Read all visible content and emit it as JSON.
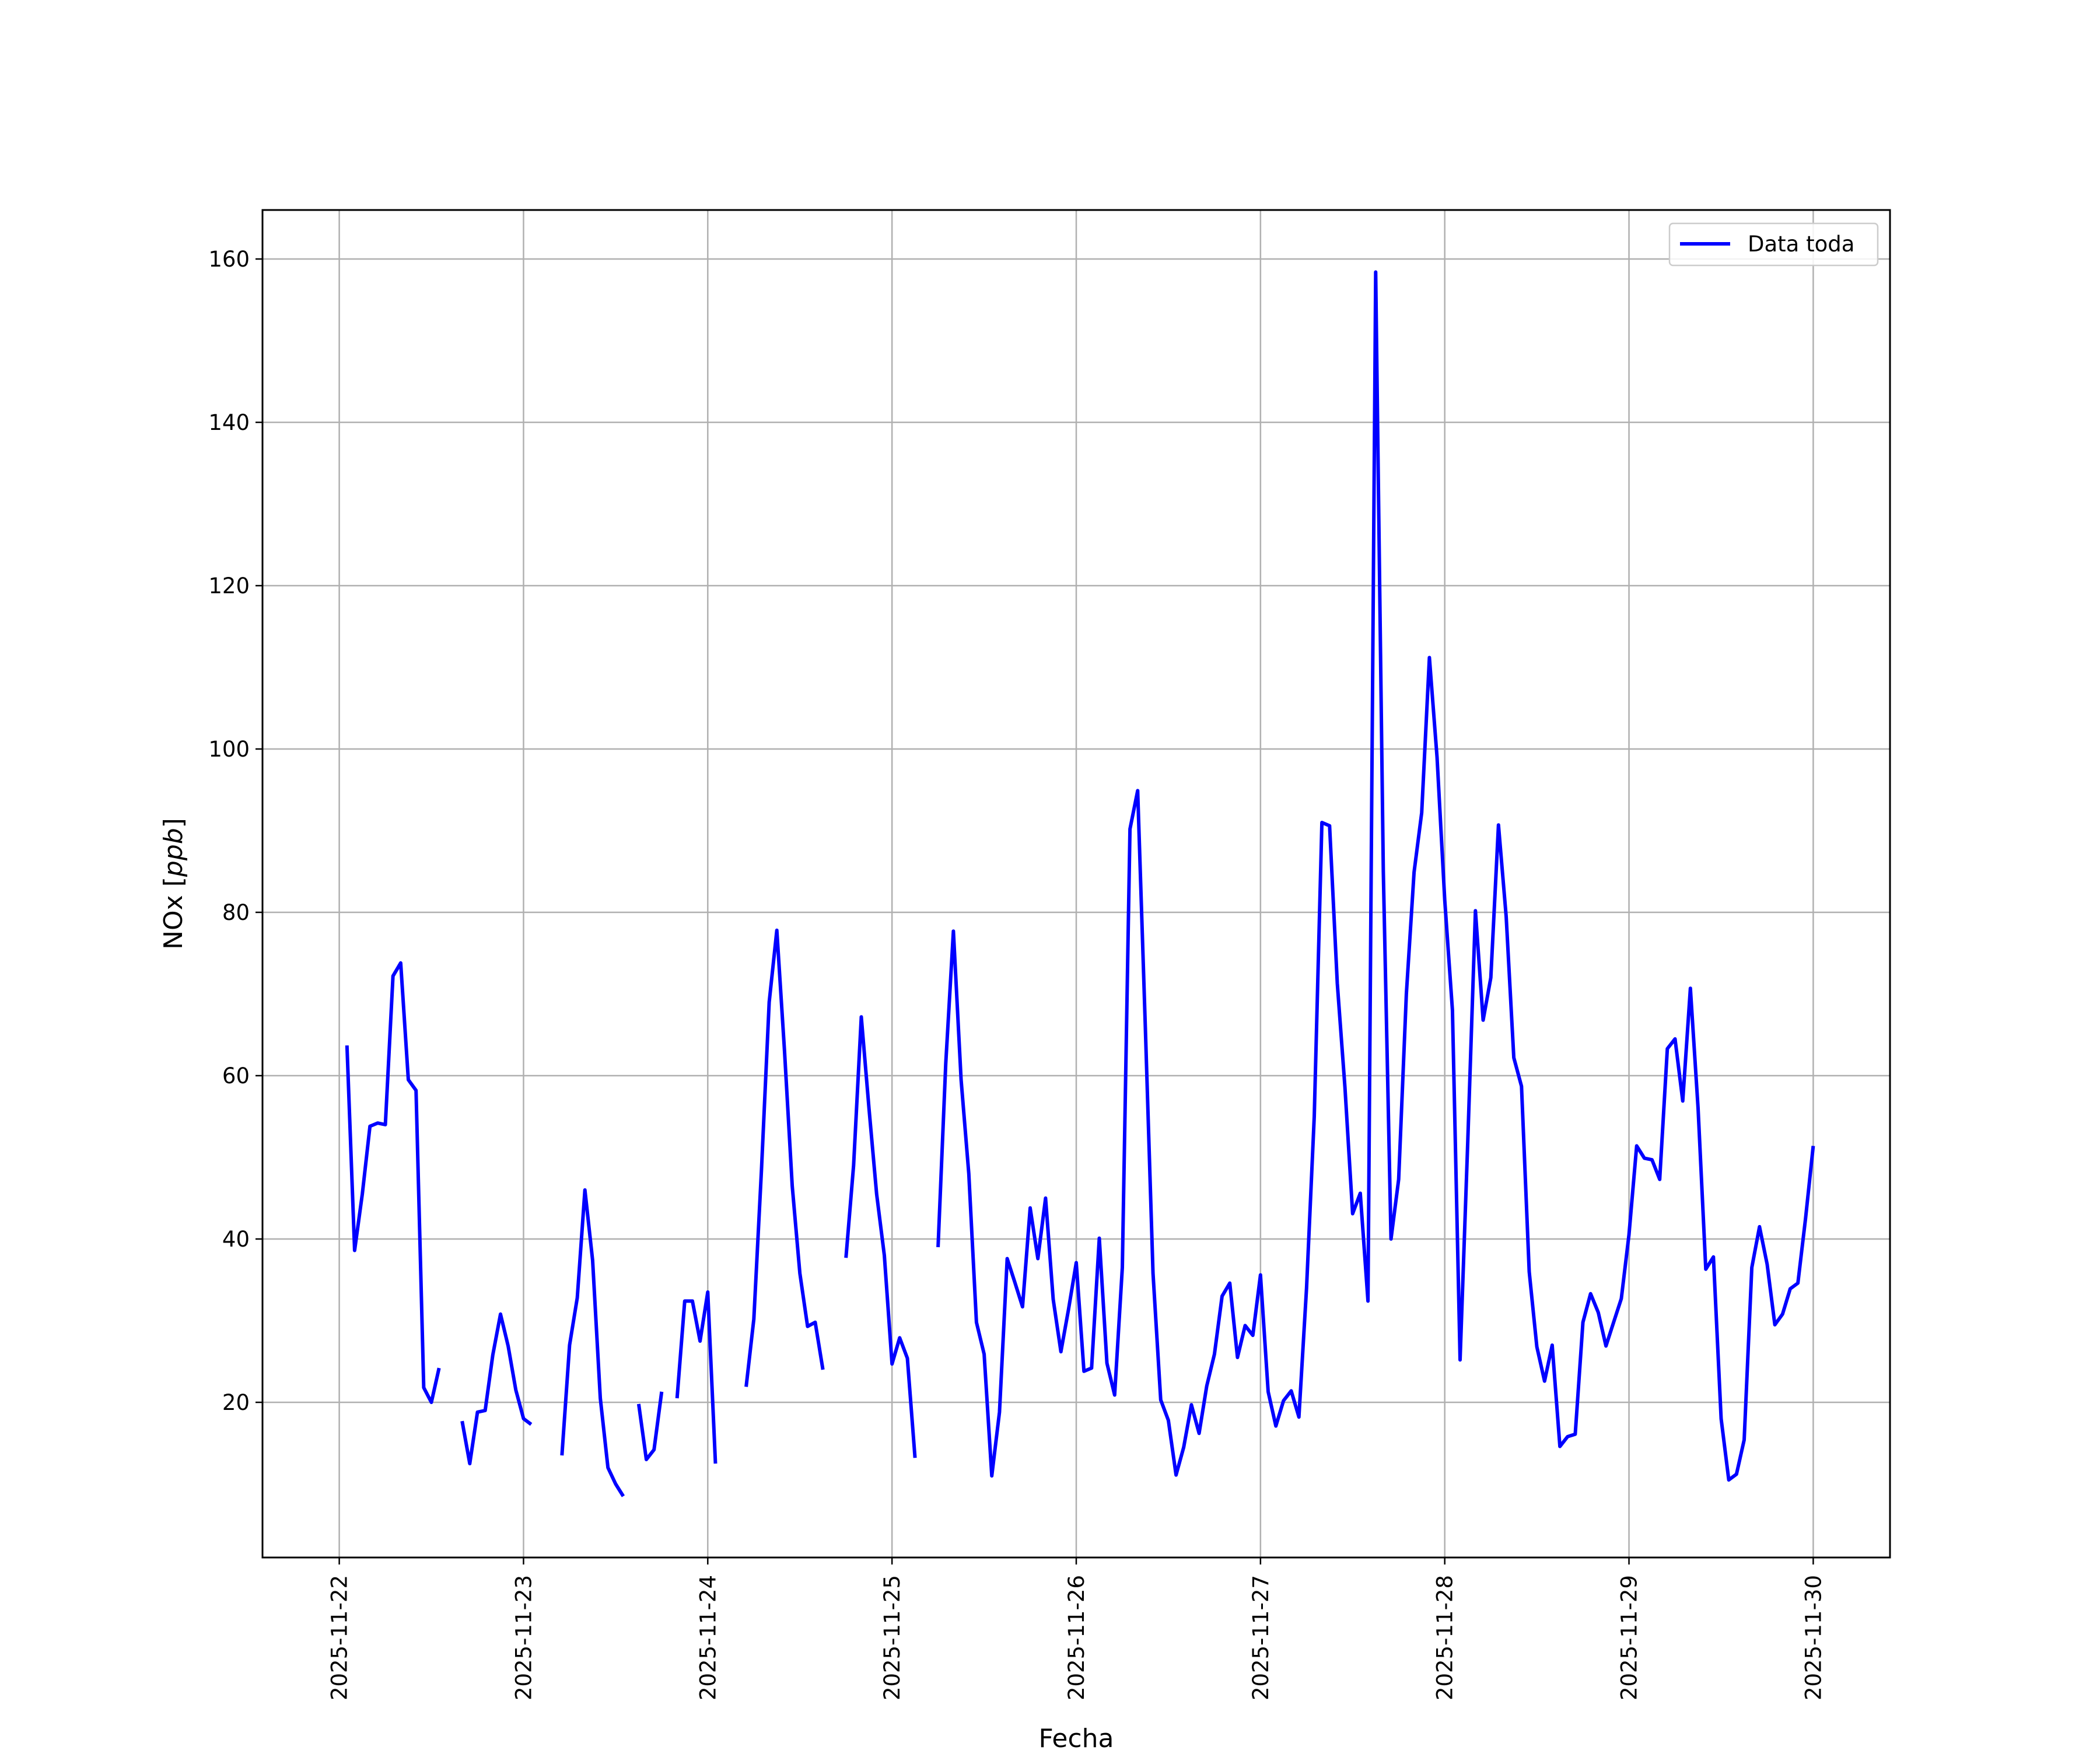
{
  "chart_data": {
    "type": "line",
    "title": "",
    "xlabel": "Fecha",
    "ylabel": "NOx [ppb]",
    "ylabel_parts": {
      "prefix": "NOx [",
      "unit": "ppb",
      "suffix": "]"
    },
    "xlim": [
      "2025-11-21T14:00",
      "2025-11-30T10:00"
    ],
    "ylim": [
      1,
      166
    ],
    "y_ticks": [
      20,
      40,
      60,
      80,
      100,
      120,
      140,
      160
    ],
    "x_ticks": [
      "2025-11-22",
      "2025-11-23",
      "2025-11-24",
      "2025-11-25",
      "2025-11-26",
      "2025-11-27",
      "2025-11-28",
      "2025-11-29",
      "2025-11-30"
    ],
    "grid": true,
    "legend_position": "top-right",
    "colors": {
      "series": "#0000ff",
      "grid": "#b0b0b0",
      "axes": "#000000"
    },
    "series": [
      {
        "name": "Data toda",
        "color": "#0000ff",
        "segments": [
          [
            [
              "2025-11-22T01:00",
              63.7
            ],
            [
              "2025-11-22T02:00",
              38.6
            ],
            [
              "2025-11-22T03:00",
              45.5
            ],
            [
              "2025-11-22T04:00",
              53.8
            ],
            [
              "2025-11-22T05:00",
              54.2
            ],
            [
              "2025-11-22T06:00",
              54.0
            ],
            [
              "2025-11-22T07:00",
              72.2
            ],
            [
              "2025-11-22T08:00",
              73.8
            ],
            [
              "2025-11-22T09:00",
              59.5
            ],
            [
              "2025-11-22T10:00",
              58.2
            ],
            [
              "2025-11-22T11:00",
              21.8
            ],
            [
              "2025-11-22T12:00",
              20.0
            ],
            [
              "2025-11-22T13:00",
              24.2
            ]
          ],
          [
            [
              "2025-11-22T16:00",
              17.7
            ],
            [
              "2025-11-22T17:00",
              12.5
            ],
            [
              "2025-11-22T18:00",
              18.8
            ],
            [
              "2025-11-22T19:00",
              19.0
            ],
            [
              "2025-11-22T20:00",
              25.8
            ],
            [
              "2025-11-22T21:00",
              30.8
            ],
            [
              "2025-11-22T22:00",
              26.9
            ],
            [
              "2025-11-22T23:00",
              21.5
            ],
            [
              "2025-11-23T00:00",
              18.0
            ],
            [
              "2025-11-23T01:00",
              17.3
            ]
          ],
          [
            [
              "2025-11-23T05:00",
              13.5
            ],
            [
              "2025-11-23T06:00",
              27.0
            ],
            [
              "2025-11-23T07:00",
              32.8
            ],
            [
              "2025-11-23T08:00",
              46.0
            ],
            [
              "2025-11-23T09:00",
              37.4
            ],
            [
              "2025-11-23T10:00",
              20.5
            ],
            [
              "2025-11-23T11:00",
              12.0
            ],
            [
              "2025-11-23T12:00",
              10.0
            ],
            [
              "2025-11-23T13:00",
              8.5
            ]
          ],
          [
            [
              "2025-11-23T15:00",
              19.8
            ],
            [
              "2025-11-23T16:00",
              13.0
            ],
            [
              "2025-11-23T17:00",
              14.2
            ],
            [
              "2025-11-23T18:00",
              21.3
            ]
          ],
          [
            [
              "2025-11-23T20:00",
              20.5
            ],
            [
              "2025-11-23T21:00",
              32.4
            ],
            [
              "2025-11-23T22:00",
              32.4
            ],
            [
              "2025-11-23T23:00",
              27.5
            ],
            [
              "2025-11-24T00:00",
              33.5
            ],
            [
              "2025-11-24T01:00",
              12.5
            ]
          ],
          [
            [
              "2025-11-24T05:00",
              21.9
            ],
            [
              "2025-11-24T06:00",
              30.2
            ],
            [
              "2025-11-24T07:00",
              48.5
            ],
            [
              "2025-11-24T08:00",
              69.0
            ],
            [
              "2025-11-24T09:00",
              77.8
            ],
            [
              "2025-11-24T10:00",
              63.0
            ],
            [
              "2025-11-24T11:00",
              46.5
            ],
            [
              "2025-11-24T12:00",
              35.8
            ],
            [
              "2025-11-24T13:00",
              29.3
            ],
            [
              "2025-11-24T14:00",
              29.8
            ],
            [
              "2025-11-24T15:00",
              24.0
            ]
          ],
          [
            [
              "2025-11-24T18:00",
              37.7
            ],
            [
              "2025-11-24T19:00",
              49.0
            ],
            [
              "2025-11-24T20:00",
              67.2
            ],
            [
              "2025-11-24T21:00",
              56.0
            ],
            [
              "2025-11-24T22:00",
              45.5
            ],
            [
              "2025-11-24T23:00",
              38.0
            ],
            [
              "2025-11-25T00:00",
              24.7
            ],
            [
              "2025-11-25T01:00",
              27.9
            ],
            [
              "2025-11-25T02:00",
              25.4
            ],
            [
              "2025-11-25T03:00",
              13.2
            ]
          ],
          [
            [
              "2025-11-25T06:00",
              39.0
            ],
            [
              "2025-11-25T07:00",
              61.5
            ],
            [
              "2025-11-25T08:00",
              77.7
            ],
            [
              "2025-11-25T09:00",
              59.5
            ],
            [
              "2025-11-25T10:00",
              48.0
            ],
            [
              "2025-11-25T11:00",
              29.8
            ],
            [
              "2025-11-25T12:00",
              25.9
            ],
            [
              "2025-11-25T13:00",
              11.0
            ],
            [
              "2025-11-25T14:00",
              18.8
            ],
            [
              "2025-11-25T15:00",
              37.6
            ],
            [
              "2025-11-25T16:00",
              34.7
            ],
            [
              "2025-11-25T17:00",
              31.7
            ],
            [
              "2025-11-25T18:00",
              43.8
            ],
            [
              "2025-11-25T19:00",
              37.6
            ],
            [
              "2025-11-25T20:00",
              45.0
            ],
            [
              "2025-11-25T21:00",
              32.6
            ],
            [
              "2025-11-25T22:00",
              26.2
            ],
            [
              "2025-11-25T23:00",
              31.4
            ],
            [
              "2025-11-26T00:00",
              37.1
            ],
            [
              "2025-11-26T01:00",
              23.8
            ],
            [
              "2025-11-26T02:00",
              24.2
            ],
            [
              "2025-11-26T03:00",
              40.1
            ],
            [
              "2025-11-26T04:00",
              24.8
            ],
            [
              "2025-11-26T05:00",
              20.9
            ],
            [
              "2025-11-26T06:00",
              36.5
            ],
            [
              "2025-11-26T07:00",
              90.2
            ],
            [
              "2025-11-26T08:00",
              94.9
            ],
            [
              "2025-11-26T09:00",
              66.0
            ],
            [
              "2025-11-26T10:00",
              35.8
            ],
            [
              "2025-11-26T11:00",
              20.3
            ],
            [
              "2025-11-26T12:00",
              17.8
            ],
            [
              "2025-11-26T13:00",
              11.1
            ],
            [
              "2025-11-26T14:00",
              14.5
            ],
            [
              "2025-11-26T15:00",
              19.7
            ],
            [
              "2025-11-26T16:00",
              16.2
            ],
            [
              "2025-11-26T17:00",
              22.0
            ],
            [
              "2025-11-26T18:00",
              25.9
            ],
            [
              "2025-11-26T19:00",
              33.0
            ],
            [
              "2025-11-26T20:00",
              34.6
            ],
            [
              "2025-11-26T21:00",
              25.5
            ],
            [
              "2025-11-26T22:00",
              29.4
            ],
            [
              "2025-11-26T23:00",
              28.2
            ],
            [
              "2025-11-27T00:00",
              35.6
            ],
            [
              "2025-11-27T01:00",
              21.3
            ],
            [
              "2025-11-27T02:00",
              17.1
            ],
            [
              "2025-11-27T03:00",
              20.2
            ],
            [
              "2025-11-27T04:00",
              21.4
            ],
            [
              "2025-11-27T05:00",
              18.2
            ],
            [
              "2025-11-27T06:00",
              34.0
            ],
            [
              "2025-11-27T07:00",
              55.0
            ],
            [
              "2025-11-27T08:00",
              91.0
            ],
            [
              "2025-11-27T09:00",
              90.6
            ],
            [
              "2025-11-27T10:00",
              71.3
            ],
            [
              "2025-11-27T11:00",
              58.6
            ],
            [
              "2025-11-27T12:00",
              43.1
            ],
            [
              "2025-11-27T13:00",
              45.6
            ],
            [
              "2025-11-27T14:00",
              32.4
            ],
            [
              "2025-11-27T15:00",
              158.4
            ],
            [
              "2025-11-27T16:00",
              85.0
            ],
            [
              "2025-11-27T17:00",
              40.0
            ],
            [
              "2025-11-27T18:00",
              47.3
            ],
            [
              "2025-11-27T19:00",
              70.0
            ],
            [
              "2025-11-27T20:00",
              84.9
            ],
            [
              "2025-11-27T21:00",
              92.2
            ],
            [
              "2025-11-27T22:00",
              111.2
            ],
            [
              "2025-11-27T23:00",
              99.0
            ],
            [
              "2025-11-28T00:00",
              81.5
            ],
            [
              "2025-11-28T01:00",
              68.0
            ],
            [
              "2025-11-28T02:00",
              25.2
            ],
            [
              "2025-11-28T03:00",
              52.0
            ],
            [
              "2025-11-28T04:00",
              80.2
            ],
            [
              "2025-11-28T05:00",
              66.8
            ],
            [
              "2025-11-28T06:00",
              72.0
            ],
            [
              "2025-11-28T07:00",
              90.7
            ],
            [
              "2025-11-28T08:00",
              79.5
            ],
            [
              "2025-11-28T09:00",
              62.2
            ],
            [
              "2025-11-28T10:00",
              58.7
            ],
            [
              "2025-11-28T11:00",
              36.0
            ],
            [
              "2025-11-28T12:00",
              26.8
            ],
            [
              "2025-11-28T13:00",
              22.6
            ],
            [
              "2025-11-28T14:00",
              27.0
            ],
            [
              "2025-11-28T15:00",
              14.6
            ],
            [
              "2025-11-28T16:00",
              15.8
            ],
            [
              "2025-11-28T17:00",
              16.1
            ],
            [
              "2025-11-28T18:00",
              29.8
            ],
            [
              "2025-11-28T19:00",
              33.3
            ],
            [
              "2025-11-28T20:00",
              31.0
            ],
            [
              "2025-11-28T21:00",
              26.9
            ],
            [
              "2025-11-28T22:00",
              29.8
            ],
            [
              "2025-11-28T23:00",
              32.7
            ],
            [
              "2025-11-29T00:00",
              40.5
            ],
            [
              "2025-11-29T01:00",
              51.4
            ],
            [
              "2025-11-29T02:00",
              49.9
            ],
            [
              "2025-11-29T03:00",
              49.7
            ],
            [
              "2025-11-29T04:00",
              47.3
            ],
            [
              "2025-11-29T05:00",
              63.3
            ],
            [
              "2025-11-29T06:00",
              64.5
            ],
            [
              "2025-11-29T07:00",
              56.9
            ],
            [
              "2025-11-29T08:00",
              70.7
            ],
            [
              "2025-11-29T09:00",
              56.0
            ],
            [
              "2025-11-29T10:00",
              36.3
            ],
            [
              "2025-11-29T11:00",
              37.8
            ],
            [
              "2025-11-29T12:00",
              18.0
            ],
            [
              "2025-11-29T13:00",
              10.5
            ],
            [
              "2025-11-29T14:00",
              11.2
            ],
            [
              "2025-11-29T15:00",
              15.4
            ],
            [
              "2025-11-29T16:00",
              36.5
            ],
            [
              "2025-11-29T17:00",
              41.5
            ],
            [
              "2025-11-29T18:00",
              36.9
            ],
            [
              "2025-11-29T19:00",
              29.5
            ],
            [
              "2025-11-29T20:00",
              30.8
            ],
            [
              "2025-11-29T21:00",
              33.9
            ],
            [
              "2025-11-29T22:00",
              34.6
            ],
            [
              "2025-11-29T23:00",
              42.5
            ],
            [
              "2025-11-30T00:00",
              51.4
            ]
          ]
        ]
      }
    ]
  }
}
